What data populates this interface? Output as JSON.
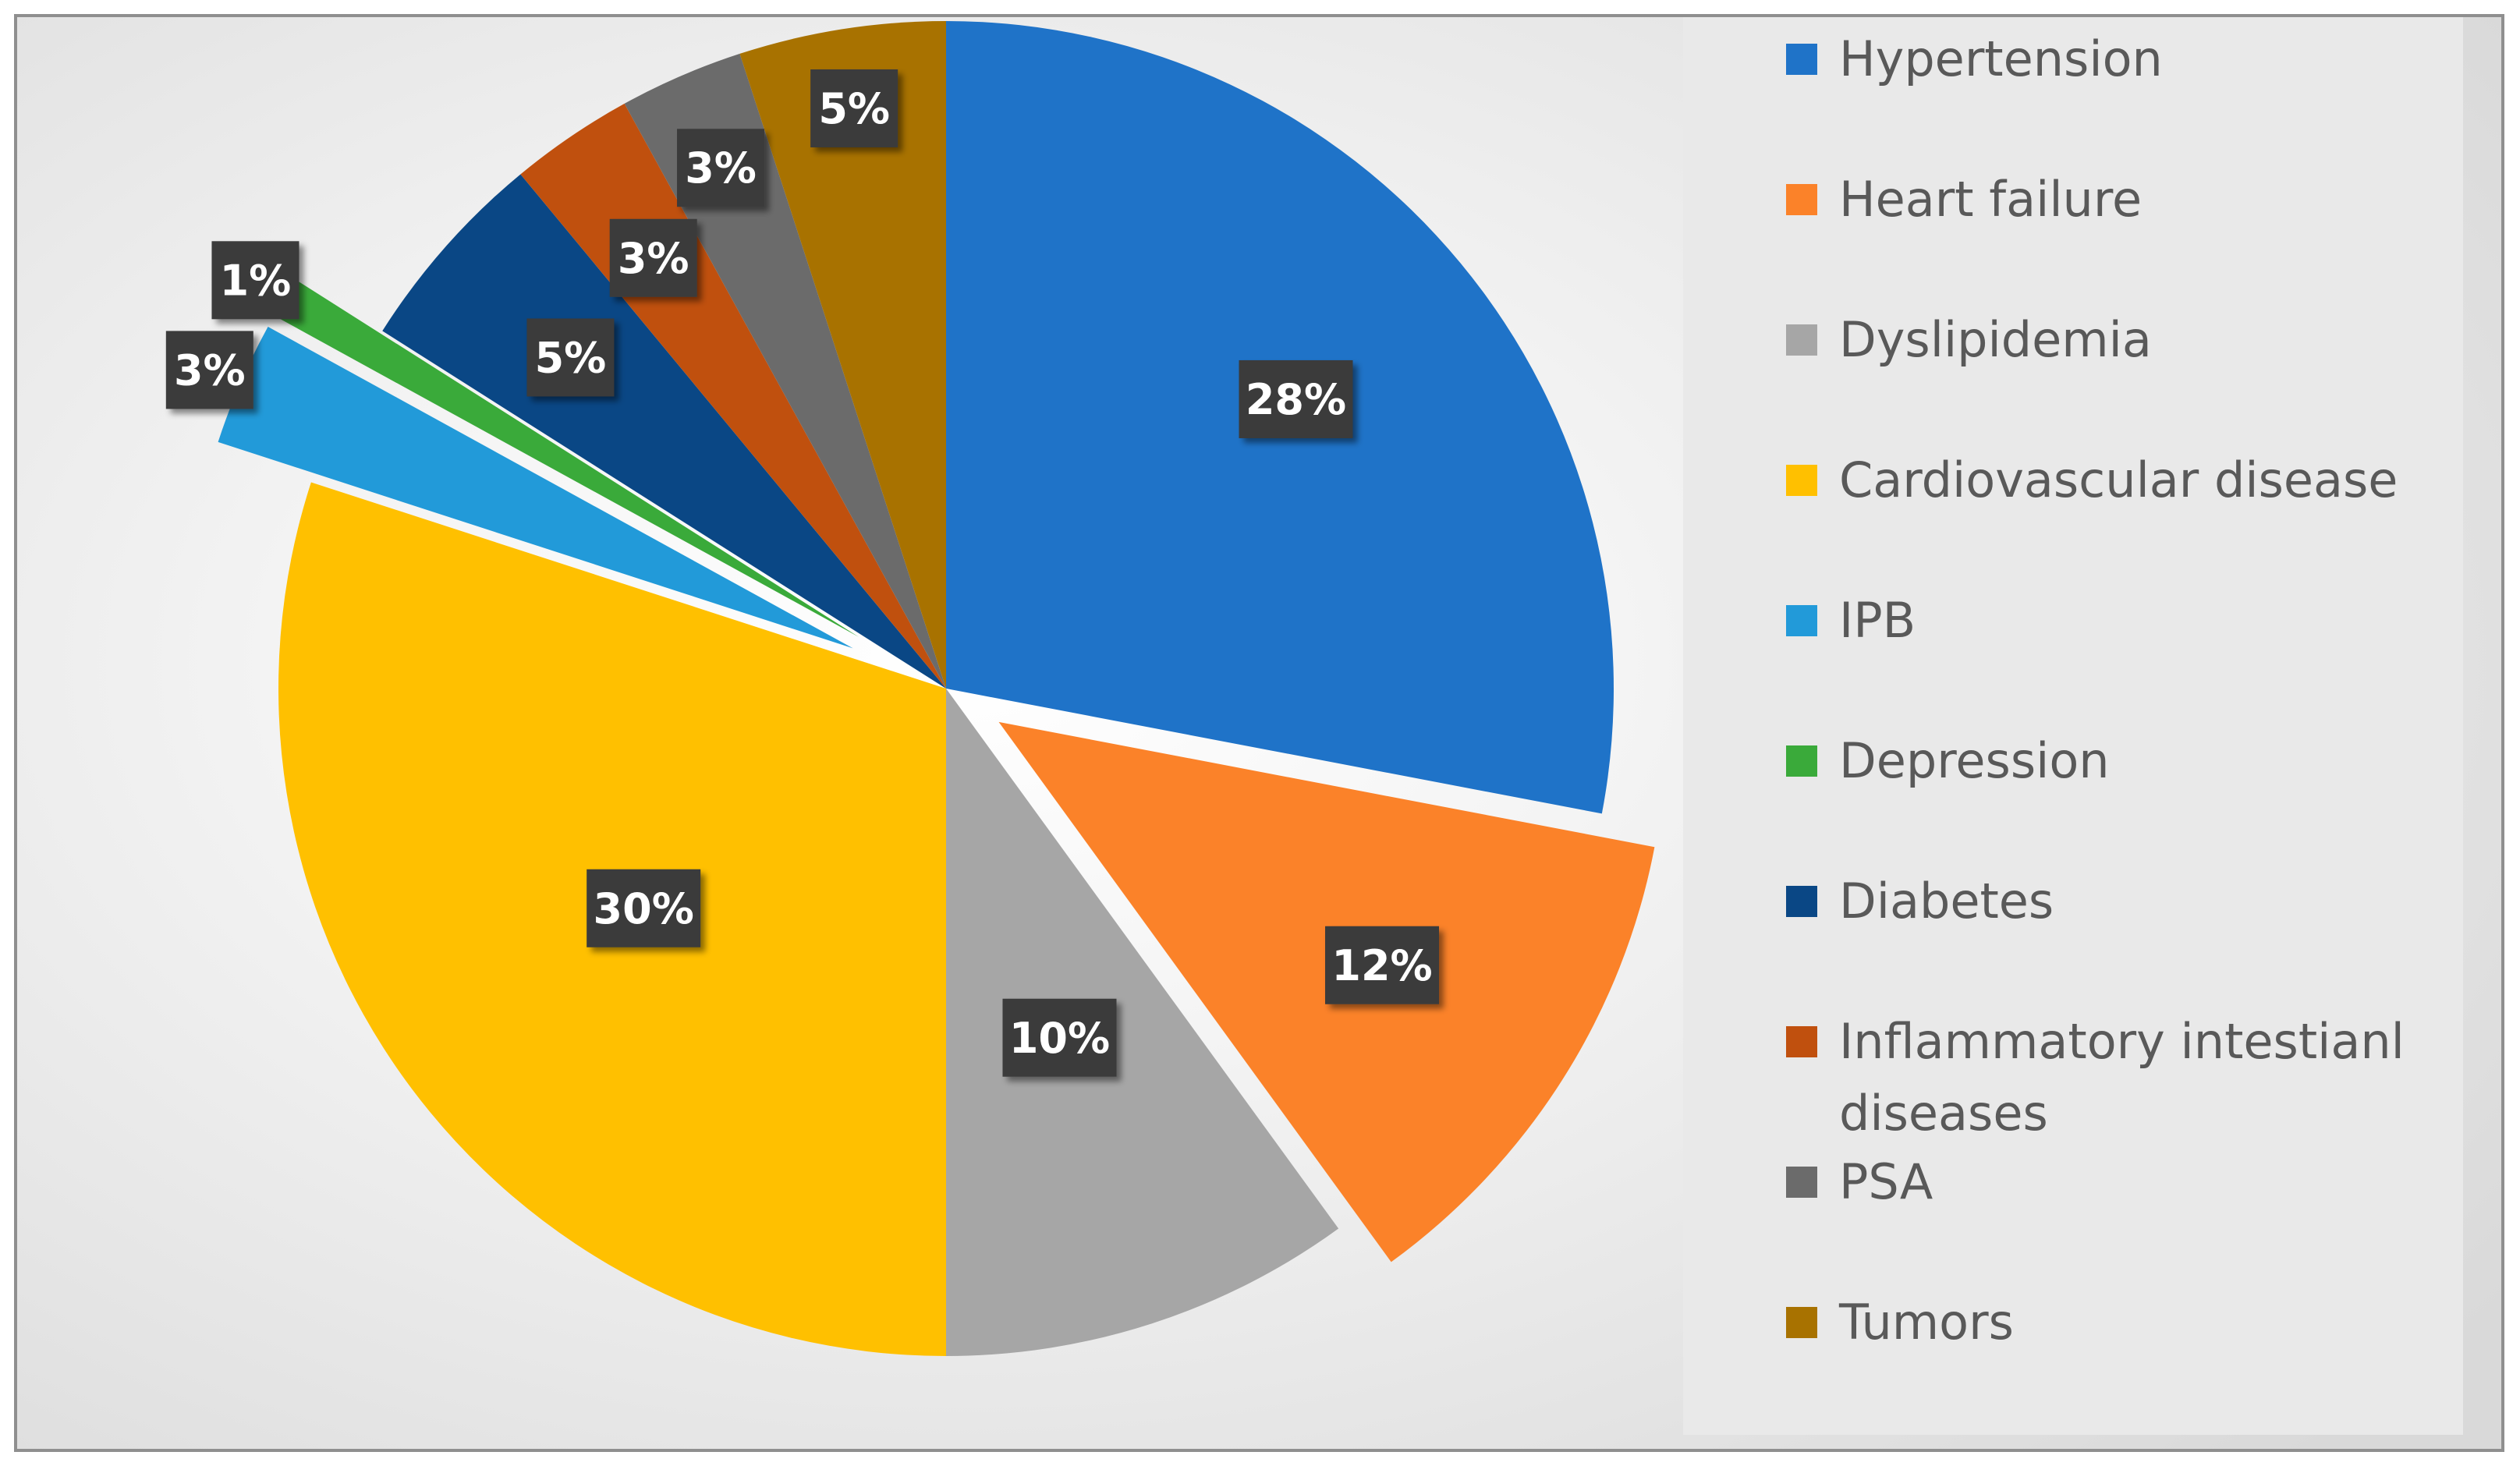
{
  "chart_data": {
    "type": "pie",
    "title": "",
    "legend_position": "right",
    "slices": [
      {
        "label": "Hypertension",
        "value": 28,
        "data_label": "28%",
        "color": "#1f73c8",
        "exploded": false
      },
      {
        "label": "Heart failure",
        "value": 12,
        "data_label": "12%",
        "color": "#fb8229",
        "exploded": true
      },
      {
        "label": "Dyslipidemia",
        "value": 10,
        "data_label": "10%",
        "color": "#a6a6a6",
        "exploded": false
      },
      {
        "label": "Cardiovascular disease",
        "value": 30,
        "data_label": "30%",
        "color": "#ffc000",
        "exploded": false
      },
      {
        "label": "IPB",
        "value": 3,
        "data_label": "3%",
        "color": "#229ad9",
        "exploded": true
      },
      {
        "label": "Depression",
        "value": 1,
        "data_label": "1%",
        "color": "#3aaa3a",
        "exploded": true
      },
      {
        "label": "Diabetes",
        "value": 5,
        "data_label": "5%",
        "color": "#0a4785",
        "exploded": false
      },
      {
        "label": "Inflammatory intestianl diseases",
        "value": 3,
        "data_label": "3%",
        "color": "#c0500e",
        "exploded": false
      },
      {
        "label": "PSA",
        "value": 3,
        "data_label": "3%",
        "color": "#6b6b6b",
        "exploded": false
      },
      {
        "label": "Tumors",
        "value": 5,
        "data_label": "5%",
        "color": "#a87200",
        "exploded": false
      }
    ]
  }
}
